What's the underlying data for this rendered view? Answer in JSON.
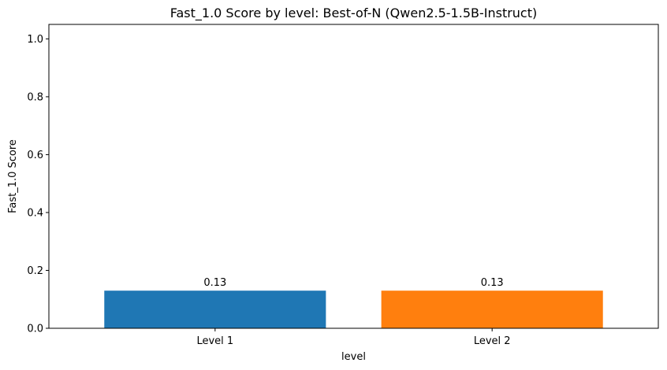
{
  "chart_data": {
    "type": "bar",
    "title": "Fast_1.0 Score by level: Best-of-N (Qwen2.5-1.5B-Instruct)",
    "xlabel": "level",
    "ylabel": "Fast_1.0 Score",
    "categories": [
      "Level 1",
      "Level 2"
    ],
    "values": [
      0.13,
      0.13
    ],
    "data_labels": [
      "0.13",
      "0.13"
    ],
    "colors": [
      "#1f77b4",
      "#ff7f0e"
    ],
    "ylim": [
      0,
      1.05
    ],
    "yticks": [
      0.0,
      0.2,
      0.4,
      0.6,
      0.8,
      1.0
    ],
    "ytick_labels": [
      "0.0",
      "0.2",
      "0.4",
      "0.6",
      "0.8",
      "1.0"
    ],
    "grid": false,
    "legend": "none"
  }
}
